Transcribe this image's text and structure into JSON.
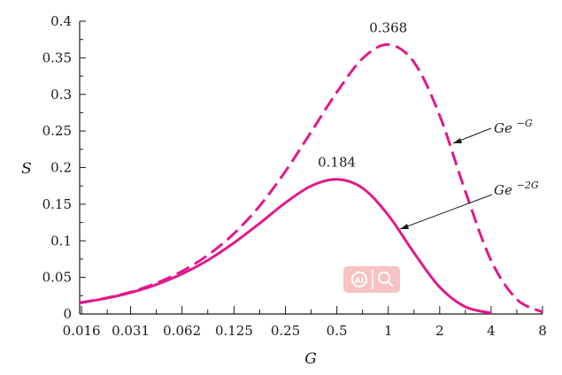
{
  "chart_data": {
    "type": "line",
    "xlabel": "G",
    "ylabel": "S",
    "x_scale": "log2",
    "xlim": [
      0.0156,
      8
    ],
    "ylim": [
      0,
      0.4
    ],
    "x_ticks": [
      0.016,
      0.031,
      0.062,
      0.125,
      0.25,
      0.5,
      1,
      2,
      4,
      8
    ],
    "x_tick_labels": [
      "0.016",
      "0.031",
      "0.062",
      "0.125",
      "0.25",
      "0.5",
      "1",
      "2",
      "4",
      "8"
    ],
    "y_ticks": [
      0,
      0.05,
      0.1,
      0.15,
      0.2,
      0.25,
      0.3,
      0.35,
      0.4
    ],
    "y_tick_labels": [
      "0",
      "0.05",
      "0.1",
      "0.15",
      "0.2",
      "0.25",
      "0.3",
      "0.35",
      "0.4"
    ],
    "grid": false,
    "series": [
      {
        "name": "Ge^{-G}",
        "label_base": "Ge",
        "label_sup": "−G",
        "style": "dashed",
        "color": "#e0198c",
        "x": [
          0.0156,
          0.0221,
          0.0313,
          0.0442,
          0.0625,
          0.0884,
          0.125,
          0.177,
          0.25,
          0.354,
          0.5,
          0.707,
          1,
          1.414,
          2,
          2.83,
          4,
          5.66,
          8
        ],
        "y": [
          0.0154,
          0.0216,
          0.0303,
          0.0424,
          0.0588,
          0.0809,
          0.11,
          0.148,
          0.195,
          0.249,
          0.303,
          0.349,
          0.368,
          0.344,
          0.271,
          0.167,
          0.073,
          0.02,
          0.0027
        ]
      },
      {
        "name": "Ge^{-2G}",
        "label_base": "Ge",
        "label_sup": "−2G",
        "style": "solid",
        "color": "#e0198c",
        "x": [
          0.0156,
          0.0221,
          0.0313,
          0.0442,
          0.0625,
          0.0884,
          0.125,
          0.177,
          0.25,
          0.354,
          0.5,
          0.707,
          1,
          1.414,
          2,
          2.83,
          4
        ],
        "y": [
          0.0151,
          0.0212,
          0.0294,
          0.0404,
          0.0551,
          0.0739,
          0.0973,
          0.124,
          0.152,
          0.175,
          0.184,
          0.172,
          0.135,
          0.0836,
          0.0366,
          0.0098,
          0.0013
        ]
      }
    ],
    "annotations": [
      {
        "text": "0.368",
        "x": 1,
        "y": 0.368
      },
      {
        "text": "0.184",
        "x": 0.5,
        "y": 0.184
      }
    ]
  }
}
